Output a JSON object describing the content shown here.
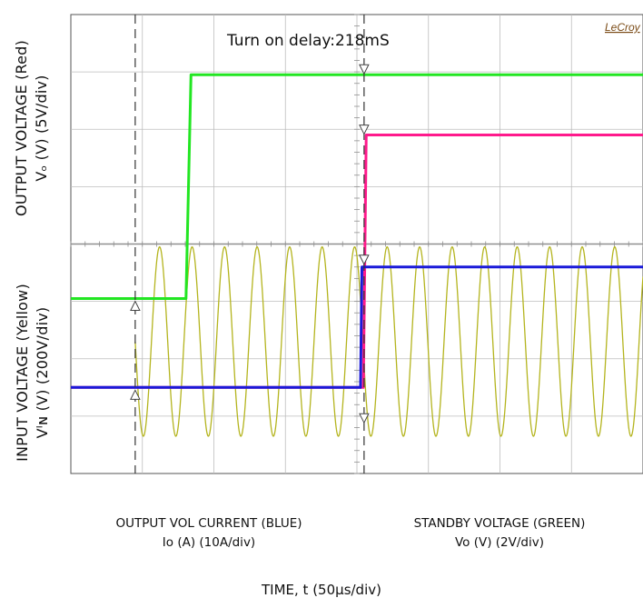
{
  "chart_data": {
    "type": "line",
    "title": "",
    "annotation": "Turn on delay:218mS",
    "brand": "LeCroy",
    "xlabel": "TIME, t (50μs/div)",
    "x_unit": "div",
    "xlim": [
      0,
      8
    ],
    "ylim_div": [
      -4,
      4
    ],
    "ylabel_top": {
      "line1": "OUTPUT VOLTAGE (Red)",
      "line2": "Vₒ (V) (5V/div)"
    },
    "ylabel_bottom": {
      "line1": "INPUT VOLTAGE (Yellow)",
      "line2": "Vᴵɴ (V) (200V/div)"
    },
    "channel_labels": [
      {
        "line1": "OUTPUT VOL CURRENT (BLUE)",
        "line2": "Io (A) (10A/div)"
      },
      {
        "line1": "STANDBY VOLTAGE (GREEN)",
        "line2": "Vo (V) (2V/div)"
      }
    ],
    "grid": true,
    "markers_x_div": [
      0.9,
      4.1
    ],
    "series": [
      {
        "color": "#22e622",
        "kind": "step",
        "x": [
          0,
          1.61,
          1.68,
          8
        ],
        "y": [
          -0.95,
          -0.95,
          2.95,
          2.95
        ]
      },
      {
        "color": "#ff1a8c",
        "kind": "step",
        "x": [
          0,
          4.09,
          4.13,
          8
        ],
        "y": [
          -2.5,
          -2.5,
          1.9,
          1.9
        ]
      },
      {
        "color": "#1a1ad9",
        "kind": "step",
        "x": [
          0,
          4.05,
          4.07,
          8
        ],
        "y": [
          -2.5,
          -2.5,
          -0.4,
          -0.4
        ]
      },
      {
        "color": "#b4b41e",
        "kind": "sine",
        "x_start": 0.9,
        "x_end": 8,
        "cycles_per_div": 2.2,
        "amplitude_div": 1.65,
        "center_div": -1.7
      }
    ]
  }
}
